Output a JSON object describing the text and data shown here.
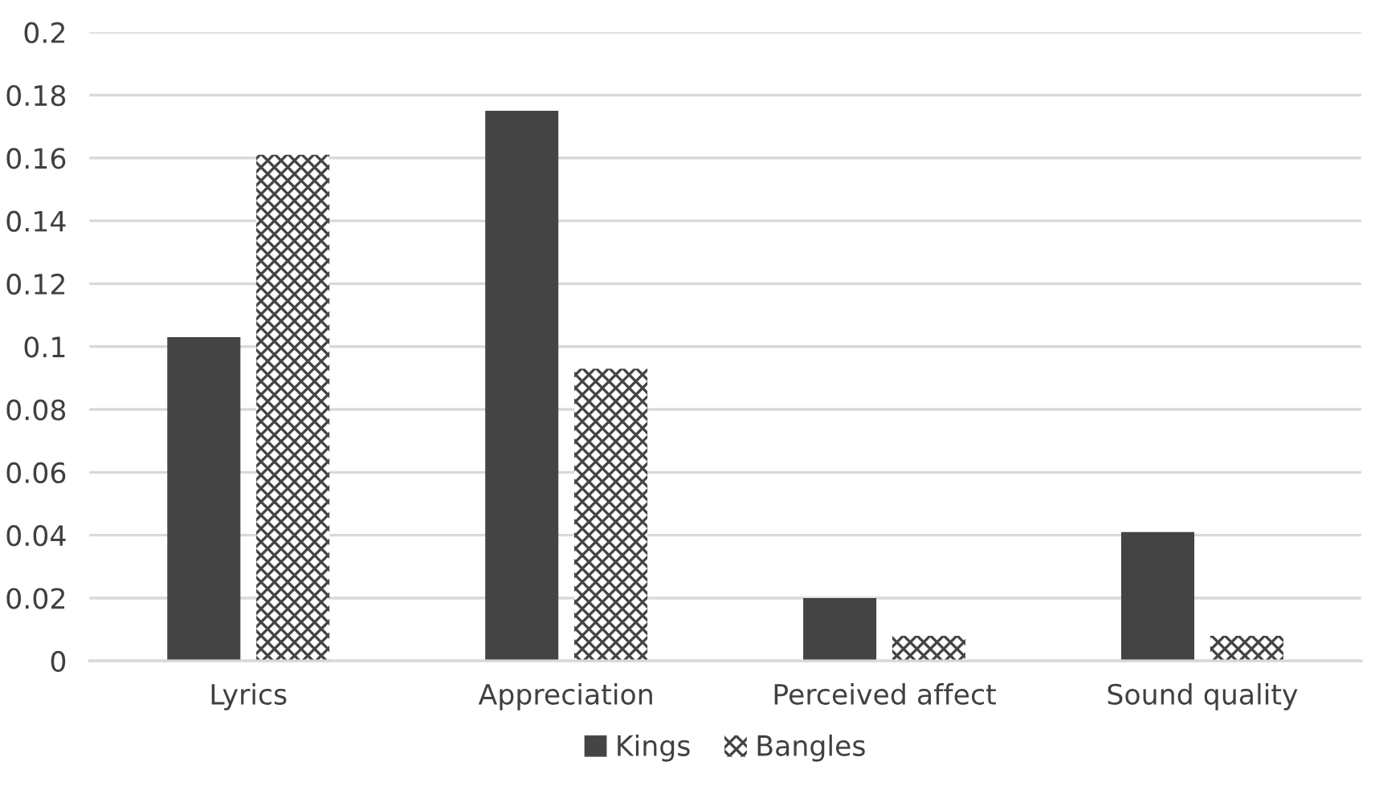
{
  "chart_data": {
    "type": "bar",
    "categories": [
      "Lyrics",
      "Appreciation",
      "Perceived affect",
      "Sound quality"
    ],
    "series": [
      {
        "name": "Kings",
        "color": "#444444",
        "values": [
          0.103,
          0.175,
          0.02,
          0.041
        ]
      },
      {
        "name": "Bangles",
        "color": "#444444",
        "values": [
          0.161,
          0.093,
          0.008,
          0.008
        ]
      }
    ],
    "ylim": [
      0,
      0.2
    ],
    "yticks": [
      0,
      0.02,
      0.04,
      0.06,
      0.08,
      0.1,
      0.12,
      0.14,
      0.16,
      0.18,
      0.2
    ],
    "grid": "y",
    "legend": "bottom"
  }
}
